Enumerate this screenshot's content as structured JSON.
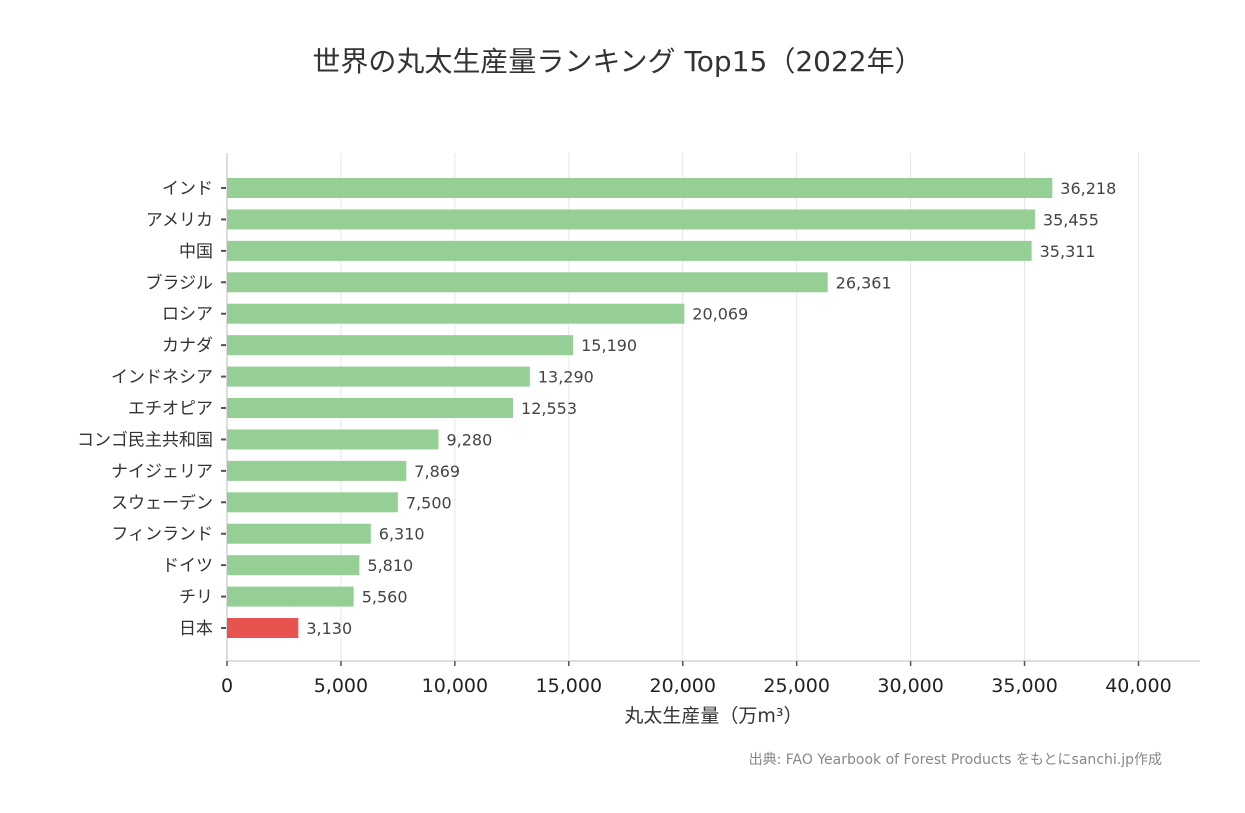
{
  "chart_data": {
    "type": "bar",
    "orientation": "horizontal",
    "title": "世界の丸太生産量ランキング Top15（2022年）",
    "xlabel": "丸太生産量（万m³）",
    "ylabel": "",
    "categories": [
      "インド",
      "アメリカ",
      "中国",
      "ブラジル",
      "ロシア",
      "カナダ",
      "インドネシア",
      "エチオピア",
      "コンゴ民主共和国",
      "ナイジェリア",
      "スウェーデン",
      "フィンランド",
      "ドイツ",
      "チリ",
      "日本"
    ],
    "values": [
      36218,
      35455,
      35311,
      26361,
      20069,
      15190,
      13290,
      12553,
      9280,
      7869,
      7500,
      6310,
      5810,
      5560,
      3130
    ],
    "data_labels": [
      "36,218",
      "35,455",
      "35,311",
      "26,361",
      "20,069",
      "15,190",
      "13,290",
      "12,553",
      "9,280",
      "7,869",
      "7,500",
      "6,310",
      "5,810",
      "5,560",
      "3,130"
    ],
    "xticks": [
      0,
      5000,
      10000,
      15000,
      20000,
      25000,
      30000,
      35000,
      40000
    ],
    "xtick_labels": [
      "0",
      "5,000",
      "10,000",
      "15,000",
      "20,000",
      "25,000",
      "30,000",
      "35,000",
      "40,000"
    ],
    "xlim": [
      0,
      42700
    ],
    "grid": "vertical",
    "colors": {
      "default": "#95cf95",
      "highlight": "#e8534f"
    },
    "highlight": "日本",
    "source": "出典: FAO Yearbook of Forest Products をもとにsanchi.jp作成"
  }
}
